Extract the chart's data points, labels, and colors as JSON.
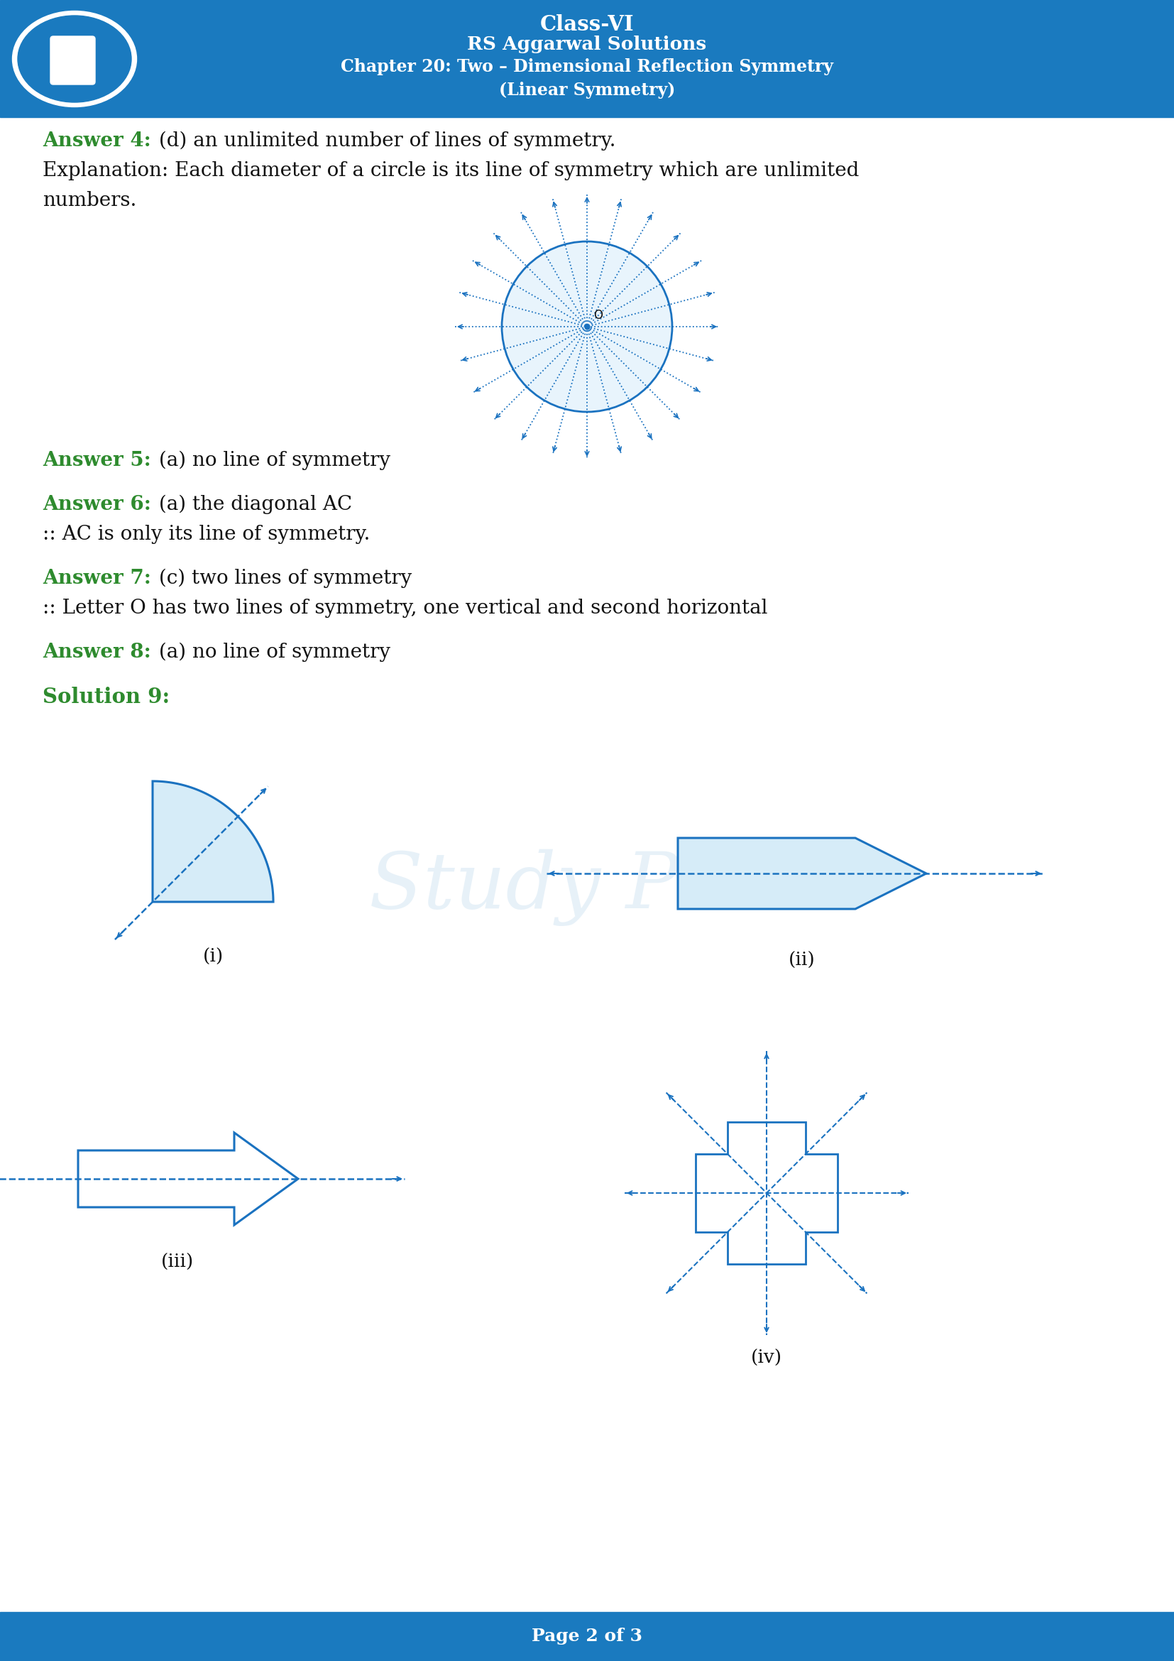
{
  "header_bg": "#1a7abf",
  "header_text_color": "#ffffff",
  "header_line1": "Class-VI",
  "header_line2": "RS Aggarwal Solutions",
  "header_line3": "Chapter 20: Two – Dimensional Reflection Symmetry",
  "header_line4": "(Linear Symmetry)",
  "footer_bg": "#1a7abf",
  "footer_text": "Page 2 of 3",
  "footer_text_color": "#ffffff",
  "page_bg": "#ffffff",
  "answer_color": "#2e8b2e",
  "body_color": "#111111",
  "draw_blue": "#1a72c0",
  "answer4_bold": "Answer 4:",
  "answer4_rest": " (d) an unlimited number of lines of symmetry.",
  "answer5_bold": "Answer 5:",
  "answer5_rest": " (a) no line of symmetry",
  "answer6_bold": "Answer 6:",
  "answer6_rest": " (a) the diagonal AC",
  "answer6_sub": ":: AC is only its line of symmetry.",
  "answer7_bold": "Answer 7:",
  "answer7_rest": " (c) two lines of symmetry",
  "answer7_sub": ":: Letter O has two lines of symmetry, one vertical and second horizontal",
  "answer8_bold": "Answer 8:",
  "answer8_rest": " (a) no line of symmetry",
  "solution9_bold": "Solution 9:",
  "explanation_line1": "Explanation: Each diameter of a circle is its line of symmetry which are unlimited",
  "explanation_line2": "numbers.",
  "label_i": "(i)",
  "label_ii": "(ii)",
  "label_iii": "(iii)",
  "label_iv": "(iv)"
}
